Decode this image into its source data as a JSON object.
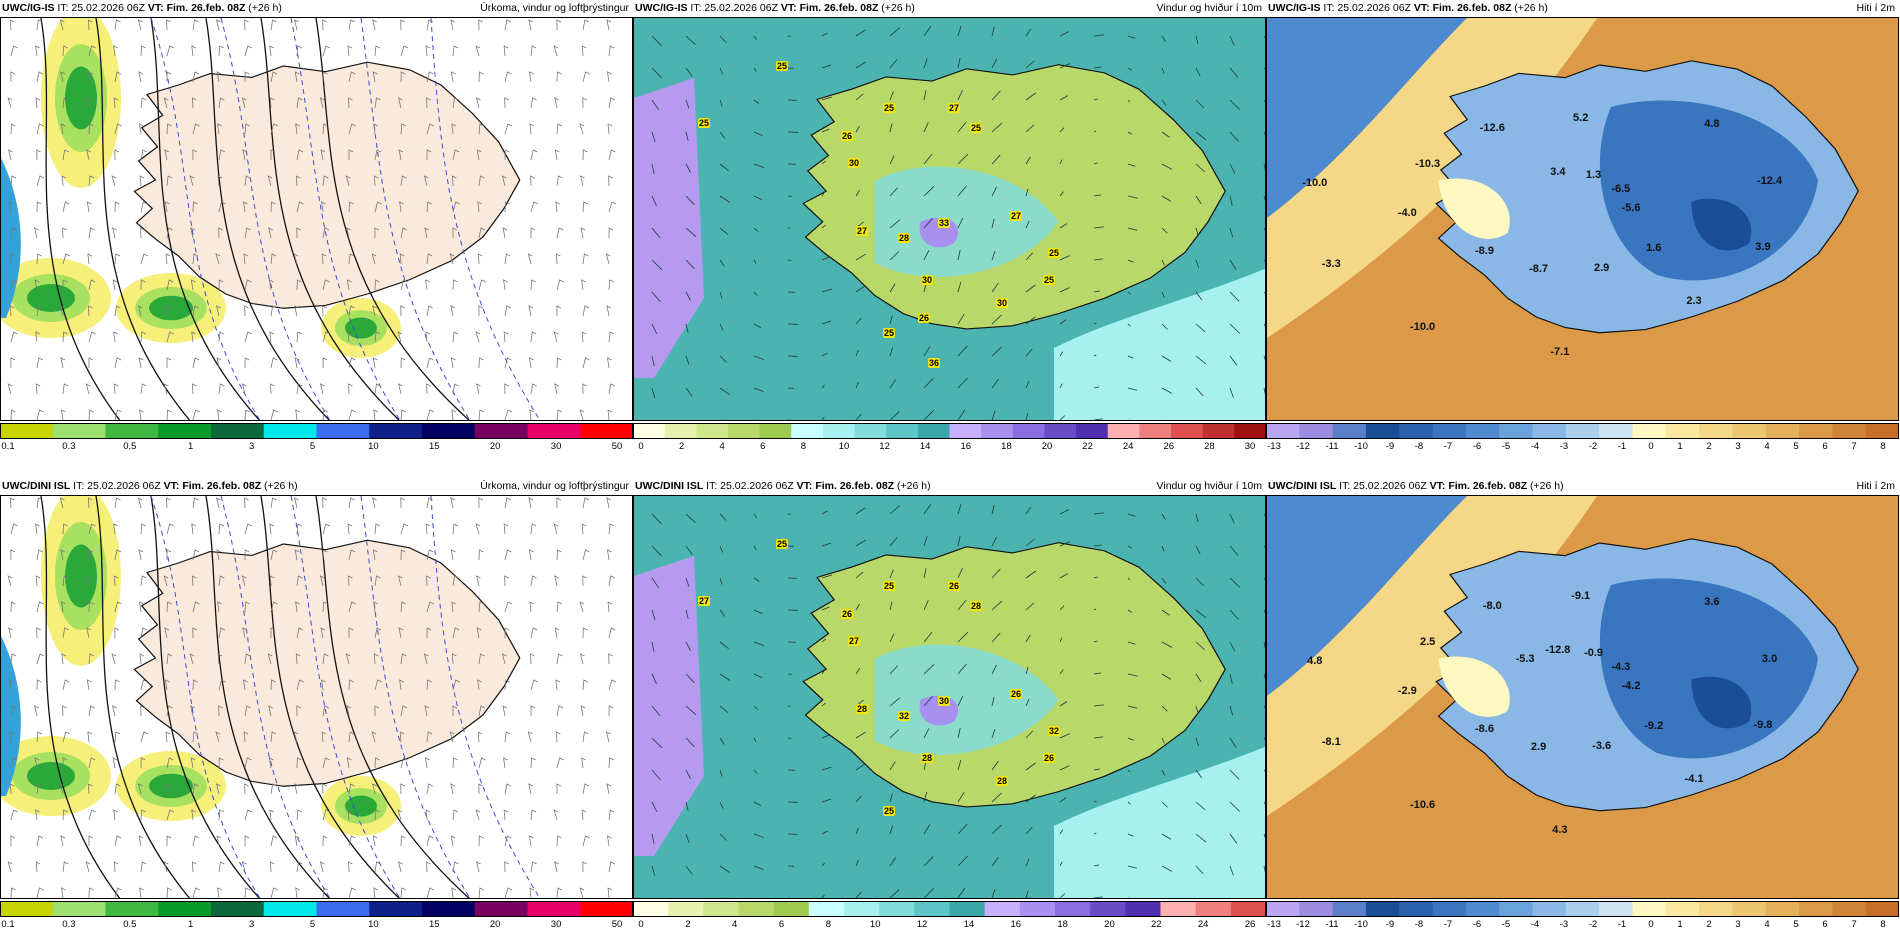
{
  "panels": [
    {
      "id": "p1",
      "model": "UWC/IG-IS",
      "it": "IT: 25.02.2026 06Z",
      "vt_label": "VT:",
      "vt": "Fim. 26.feb. 08Z",
      "lead": "(+26 h)",
      "title": "Úrkoma, vindur og loftþrýstingur",
      "type": "precip",
      "colorbar": {
        "colors": [
          "#c8d400",
          "#9ee070",
          "#3fb93f",
          "#0a9a2a",
          "#0c6a3a",
          "#00e8e8",
          "#3a6df0",
          "#10208a",
          "#000060",
          "#780060",
          "#e8006a",
          "#ff0000"
        ],
        "labels": [
          "0.1",
          "0.3",
          "0.5",
          "1",
          "3",
          "5",
          "10",
          "15",
          "20",
          "30",
          "50"
        ]
      },
      "labels": []
    },
    {
      "id": "p2",
      "model": "UWC/IG-IS",
      "it": "IT: 25.02.2026 06Z",
      "vt_label": "VT:",
      "vt": "Fim. 26.feb. 08Z",
      "lead": "(+26 h)",
      "title": "Vindur og hviður í 10m",
      "type": "wind",
      "colorbar": {
        "colors": [
          "#ffffe6",
          "#e8f2b0",
          "#d0e68a",
          "#b8d86a",
          "#9ccb50",
          "#c8ffff",
          "#a6f0f0",
          "#82dcdc",
          "#5cc6c6",
          "#3aa8a8",
          "#c8b0ff",
          "#a890f0",
          "#8a6ee0",
          "#6a4cc8",
          "#5030b0",
          "#ffb0b0",
          "#f08080",
          "#e05050",
          "#c03030",
          "#a01010"
        ],
        "labels": [
          "0",
          "2",
          "4",
          "6",
          "8",
          "10",
          "12",
          "14",
          "16",
          "18",
          "20",
          "22",
          "24",
          "26",
          "28",
          "30"
        ]
      },
      "labels": [
        "25",
        "25",
        "25",
        "26",
        "30",
        "27",
        "25",
        "25",
        "30",
        "33",
        "28",
        "27",
        "27",
        "25",
        "30",
        "25",
        "26",
        "36"
      ]
    },
    {
      "id": "p3",
      "model": "UWC/IG-IS",
      "it": "IT: 25.02.2026 06Z",
      "vt_label": "VT:",
      "vt": "Fim. 26.feb. 08Z",
      "lead": "(+26 h)",
      "title": "Hiti í 2m",
      "type": "temp",
      "colorbar": {
        "colors": [
          "#b8a6f0",
          "#9c8ce0",
          "#5a7ec8",
          "#1a4e96",
          "#2a62ae",
          "#3a76c0",
          "#4e8ad0",
          "#6aa2dc",
          "#8ab8e6",
          "#aad0ee",
          "#cce4f2",
          "#fff8c0",
          "#fae8a0",
          "#f4d888",
          "#ecc670",
          "#e4b058",
          "#dc9a48",
          "#d08438",
          "#c86e28"
        ],
        "labels": [
          "-13",
          "-12",
          "-11",
          "-10",
          "-9",
          "-8",
          "-7",
          "-6",
          "-5",
          "-4",
          "-3",
          "-2",
          "-1",
          "0",
          "1",
          "2",
          "3",
          "4",
          "5",
          "6",
          "7",
          "8"
        ]
      },
      "labels": [
        "-5.6",
        "-8.9",
        "5.2",
        "2.3",
        "-10.0",
        "-6.5",
        "-8.7",
        "-12.6",
        "3.9",
        "-3.3",
        "1.3",
        "2.9",
        "-10.3",
        "-12.4",
        "-10.0",
        "3.4",
        "1.6",
        "-4.0",
        "4.8",
        "-7.1"
      ]
    },
    {
      "id": "p4",
      "model": "UWC/DINI ISL",
      "it": "IT: 25.02.2026 06Z",
      "vt_label": "VT:",
      "vt": "Fim. 26.feb. 08Z",
      "lead": "(+26 h)",
      "title": "Úrkoma, vindur og loftþrýstingur",
      "type": "precip",
      "colorbar": {
        "colors": [
          "#c8d400",
          "#9ee070",
          "#3fb93f",
          "#0a9a2a",
          "#0c6a3a",
          "#00e8e8",
          "#3a6df0",
          "#10208a",
          "#000060",
          "#780060",
          "#e8006a",
          "#ff0000"
        ],
        "labels": [
          "0.1",
          "0.3",
          "0.5",
          "1",
          "3",
          "5",
          "10",
          "15",
          "20",
          "30",
          "50"
        ]
      },
      "labels": []
    },
    {
      "id": "p5",
      "model": "UWC/DINI ISL",
      "it": "IT: 25.02.2026 06Z",
      "vt_label": "VT:",
      "vt": "Fim. 26.feb. 08Z",
      "lead": "(+26 h)",
      "title": "Vindur og hviður í 10m",
      "type": "wind",
      "colorbar": {
        "colors": [
          "#ffffe6",
          "#e8f2b0",
          "#d0e68a",
          "#b8d86a",
          "#9ccb50",
          "#c8ffff",
          "#a6f0f0",
          "#82dcdc",
          "#5cc6c6",
          "#3aa8a8",
          "#c8b0ff",
          "#a890f0",
          "#8a6ee0",
          "#6a4cc8",
          "#5030b0",
          "#ffb0b0",
          "#f08080",
          "#e05050"
        ],
        "labels": [
          "0",
          "2",
          "4",
          "6",
          "8",
          "10",
          "12",
          "14",
          "16",
          "18",
          "20",
          "22",
          "24",
          "26"
        ]
      },
      "labels": [
        "25",
        "27",
        "25",
        "26",
        "27",
        "26",
        "28",
        "26",
        "28",
        "30",
        "32",
        "28",
        "26",
        "32",
        "28",
        "25"
      ]
    },
    {
      "id": "p6",
      "model": "UWC/DINI ISL",
      "it": "IT: 25.02.2026 06Z",
      "vt_label": "VT:",
      "vt": "Fim. 26.feb. 08Z",
      "lead": "(+26 h)",
      "title": "Hiti í 2m",
      "type": "temp",
      "colorbar": {
        "colors": [
          "#b8a6f0",
          "#9c8ce0",
          "#5a7ec8",
          "#1a4e96",
          "#2a62ae",
          "#3a76c0",
          "#4e8ad0",
          "#6aa2dc",
          "#8ab8e6",
          "#aad0ee",
          "#cce4f2",
          "#fff8c0",
          "#fae8a0",
          "#f4d888",
          "#ecc670",
          "#e4b058",
          "#dc9a48",
          "#d08438",
          "#c86e28"
        ],
        "labels": [
          "-13",
          "-12",
          "-11",
          "-10",
          "-9",
          "-8",
          "-7",
          "-6",
          "-5",
          "-4",
          "-3",
          "-2",
          "-1",
          "0",
          "1",
          "2",
          "3",
          "4",
          "5",
          "6",
          "7",
          "8"
        ]
      },
      "labels": [
        "-4.2",
        "-8.6",
        "-9.1",
        "-4.1",
        "4.8",
        "-4.3",
        "2.9",
        "-8.0",
        "-9.8",
        "-8.1",
        "-0.9",
        "-3.6",
        "2.5",
        "3.0",
        "-10.6",
        "-12.8",
        "-9.2",
        "-2.9",
        "3.6",
        "4.3",
        "-5.3"
      ]
    }
  ]
}
